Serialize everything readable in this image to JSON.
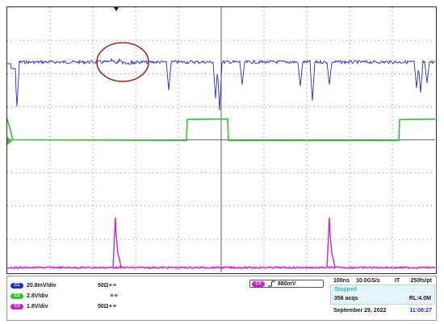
{
  "channels": [
    {
      "id": "C1",
      "scale": "20.8mV/div",
      "impedance": "50Ω",
      "bw": "B W",
      "color": "#1f2fd0"
    },
    {
      "id": "C2",
      "scale": "2.8V/div",
      "impedance": "",
      "bw": "B W",
      "color": "#2ec82e"
    },
    {
      "id": "C3",
      "scale": "1.8V/div",
      "impedance": "50Ω",
      "bw": "B W",
      "color": "#cc22cc"
    }
  ],
  "trigger": {
    "source": "C3",
    "slope": "rising",
    "level": "880mV"
  },
  "acquisition": {
    "timebase": "100ns",
    "sample_rate": "10.0GS/s",
    "mode": "IT",
    "resolution": "250fs/pt",
    "status": "Stopped",
    "acqs": "356 acqs",
    "record_length": "RL:4.0M",
    "date": "September 29, 2022",
    "time": "11:08:27"
  },
  "colors": {
    "ch1": "#1f2fd0",
    "ch2": "#2ec82e",
    "ch3": "#cc22cc",
    "grid": "#3a3a3a",
    "annotation": "#a02a1a",
    "status": "#36b6e6"
  },
  "icons": [
    "trigger-marker-icon",
    "ch2-ground-marker-icon",
    "rising-edge-icon"
  ]
}
